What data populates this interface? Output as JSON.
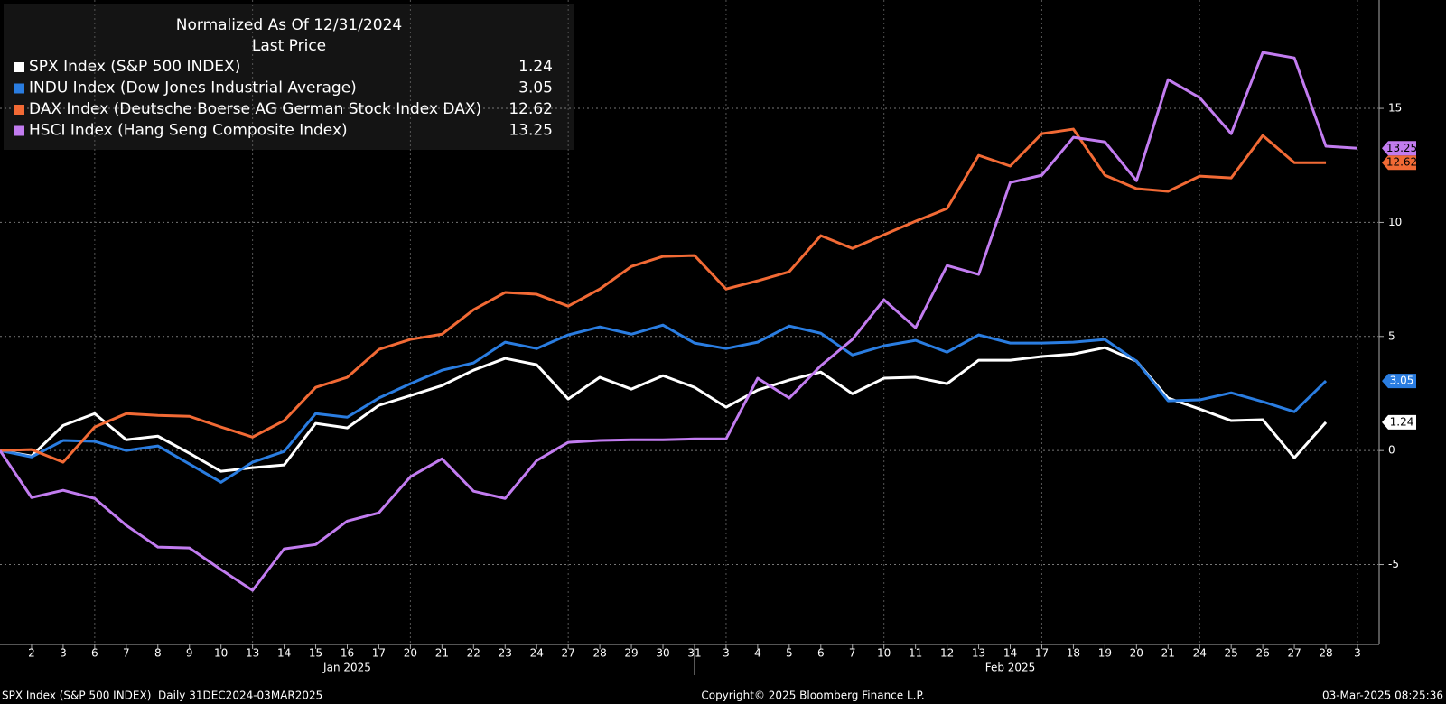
{
  "chart_data": {
    "type": "line",
    "legend_title": [
      "Normalized As Of 12/31/2024",
      "Last Price"
    ],
    "categories": [
      null,
      "2",
      "3",
      "6",
      "7",
      "8",
      "9",
      "10",
      "13",
      "14",
      "15",
      "16",
      "17",
      "20",
      "21",
      "22",
      "23",
      "24",
      "27",
      "28",
      "29",
      "30",
      "31",
      "3",
      "4",
      "5",
      "6",
      "7",
      "10",
      "11",
      "12",
      "13",
      "14",
      "17",
      "18",
      "19",
      "20",
      "21",
      "24",
      "25",
      "26",
      "27",
      "28",
      "3"
    ],
    "month_labels": [
      "Jan 2025",
      "Feb 2025"
    ],
    "series": [
      {
        "name": "SPX Index (S&P 500 INDEX)",
        "color": "#ffffff",
        "values": [
          0,
          -0.24,
          1.1,
          1.62,
          0.47,
          0.63,
          -0.12,
          -0.91,
          -0.75,
          -0.63,
          1.19,
          0.99,
          1.98,
          2.41,
          2.85,
          3.52,
          4.04,
          3.76,
          2.26,
          3.21,
          2.69,
          3.28,
          2.77,
          1.9,
          2.65,
          3.09,
          3.44,
          2.49,
          3.17,
          3.21,
          2.93,
          3.96,
          3.96,
          4.12,
          4.23,
          4.51,
          3.92,
          2.3,
          1.82,
          1.31,
          1.35,
          -0.32,
          1.24,
          null
        ]
      },
      {
        "name": "INDU Index (Dow Jones Industrial Average)",
        "color": "#2a7de1",
        "values": [
          0,
          -0.28,
          0.44,
          0.4,
          0,
          0.2,
          -0.59,
          -1.39,
          -0.51,
          -0.04,
          1.62,
          1.46,
          2.3,
          2.93,
          3.52,
          3.84,
          4.75,
          4.47,
          5.07,
          5.42,
          5.1,
          5.5,
          4.71,
          4.47,
          4.75,
          5.46,
          5.14,
          4.19,
          4.59,
          4.83,
          4.31,
          5.07,
          4.71,
          4.71,
          4.75,
          4.87,
          3.92,
          2.18,
          2.22,
          2.53,
          2.14,
          1.7,
          3.05,
          null
        ]
      },
      {
        "name": "DAX Index (Deutsche Boerse AG German Stock Index DAX)",
        "color": "#f26a35",
        "values": [
          0,
          0.04,
          -0.51,
          1.03,
          1.62,
          1.54,
          1.5,
          1.03,
          0.59,
          1.31,
          2.77,
          3.21,
          4.43,
          4.87,
          5.1,
          6.17,
          6.93,
          6.85,
          6.33,
          7.08,
          8.07,
          8.51,
          8.55,
          7.08,
          7.44,
          7.84,
          9.42,
          8.86,
          9.46,
          10.05,
          10.61,
          12.94,
          12.47,
          13.89,
          14.09,
          12.07,
          11.48,
          11.36,
          12.03,
          11.95,
          13.81,
          12.62,
          12.62,
          null
        ]
      },
      {
        "name": "HSCI Index (Hang Seng Composite Index)",
        "color": "#c27cf0",
        "values": [
          0,
          -2.06,
          -1.74,
          -2.1,
          -3.28,
          -4.23,
          -4.27,
          -5.22,
          -6.13,
          -4.31,
          -4.12,
          -3.09,
          -2.73,
          -1.15,
          -0.36,
          -1.78,
          -2.1,
          -0.44,
          0.36,
          0.44,
          0.47,
          0.47,
          0.51,
          0.51,
          3.17,
          2.3,
          3.72,
          4.87,
          6.61,
          5.38,
          8.11,
          7.72,
          11.75,
          12.07,
          13.73,
          13.53,
          11.83,
          16.26,
          15.47,
          13.89,
          17.45,
          17.21,
          13.34,
          13.25
        ]
      }
    ],
    "ylim": [
      -8.5,
      19.75
    ],
    "yticks": [
      -5,
      0,
      5,
      10,
      15
    ],
    "grid": true,
    "footer": {
      "left": "SPX Index (S&P 500 INDEX)  Daily 31DEC2024-03MAR2025",
      "center": "Copyright© 2025 Bloomberg Finance L.P.",
      "right": "03-Mar-2025 08:25:36"
    }
  }
}
